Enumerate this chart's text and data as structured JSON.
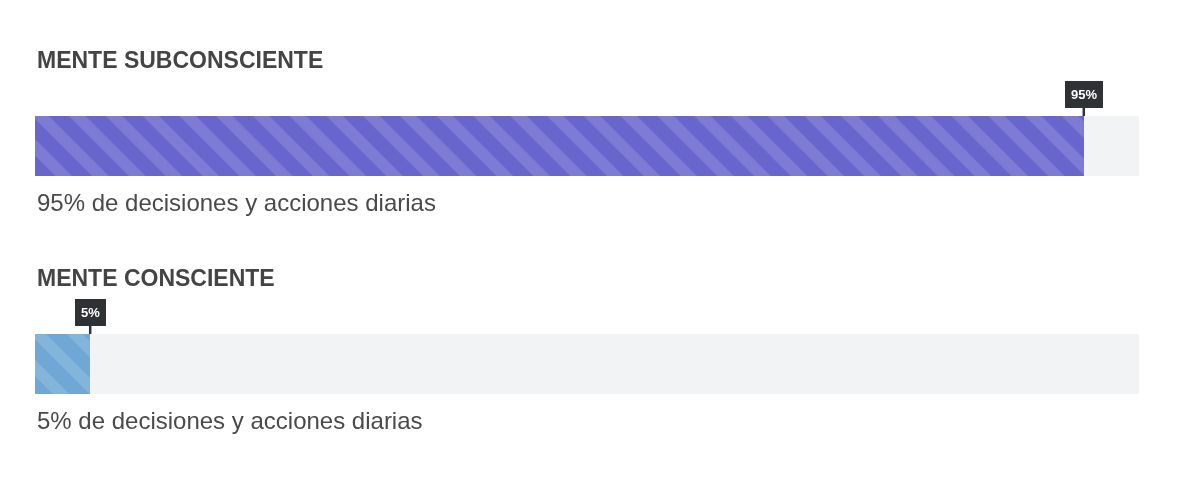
{
  "chart_data": {
    "type": "bar",
    "orientation": "horizontal",
    "categories": [
      "MENTE SUBCONSCIENTE",
      "MENTE CONSCIENTE"
    ],
    "values": [
      95,
      5
    ],
    "colors": [
      "#6866cc",
      "#6fa8d4"
    ],
    "xlim": [
      0,
      100
    ],
    "value_labels": [
      "95%",
      "5%"
    ],
    "annotations": [
      "95% de decisiones y acciones diarias",
      "5% de decisiones y acciones diarias"
    ],
    "tick_labels": "y"
  }
}
